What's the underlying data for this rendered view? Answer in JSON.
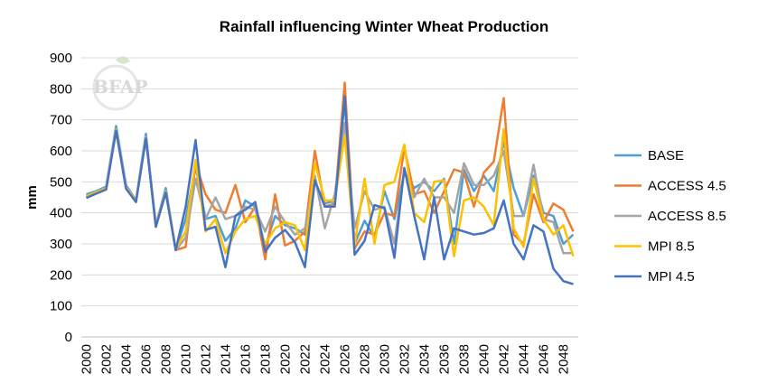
{
  "chart_data": {
    "type": "line",
    "title": "Rainfall influencing Winter Wheat Production",
    "ylabel": "mm",
    "xlabel": "",
    "ylim": [
      0,
      900
    ],
    "yticks": [
      0,
      100,
      200,
      300,
      400,
      500,
      600,
      700,
      800,
      900
    ],
    "xticks": [
      2000,
      2002,
      2004,
      2006,
      2008,
      2010,
      2012,
      2014,
      2016,
      2018,
      2020,
      2022,
      2024,
      2026,
      2028,
      2030,
      2032,
      2034,
      2036,
      2038,
      2040,
      2042,
      2044,
      2046,
      2048
    ],
    "x": [
      2000,
      2001,
      2002,
      2003,
      2004,
      2005,
      2006,
      2007,
      2008,
      2009,
      2010,
      2011,
      2012,
      2013,
      2014,
      2015,
      2016,
      2017,
      2018,
      2019,
      2020,
      2021,
      2022,
      2023,
      2024,
      2025,
      2026,
      2027,
      2028,
      2029,
      2030,
      2031,
      2032,
      2033,
      2034,
      2035,
      2036,
      2037,
      2038,
      2039,
      2040,
      2041,
      2042,
      2043,
      2044,
      2045,
      2046,
      2047,
      2048,
      2049
    ],
    "grid": true,
    "legend_position": "right",
    "watermark": "BFAP",
    "series": [
      {
        "name": "BASE",
        "color": "#4f9fd6",
        "values": [
          460,
          470,
          485,
          680,
          490,
          440,
          655,
          360,
          480,
          280,
          380,
          550,
          380,
          390,
          310,
          350,
          440,
          420,
          290,
          390,
          360,
          350,
          330,
          500,
          430,
          440,
          760,
          300,
          375,
          320,
          470,
          380,
          530,
          480,
          500,
          470,
          510,
          300,
          540,
          470,
          520,
          470,
          630,
          480,
          390,
          520,
          400,
          390,
          300,
          330
        ]
      },
      {
        "name": "ACCESS 4.5",
        "color": "#ed7d31",
        "values": [
          450,
          465,
          480,
          665,
          480,
          440,
          640,
          360,
          470,
          280,
          290,
          560,
          460,
          410,
          400,
          490,
          370,
          420,
          250,
          460,
          295,
          310,
          340,
          600,
          420,
          430,
          820,
          285,
          340,
          330,
          400,
          390,
          610,
          460,
          470,
          400,
          470,
          540,
          530,
          420,
          530,
          565,
          770,
          330,
          300,
          460,
          370,
          430,
          410,
          340
        ]
      },
      {
        "name": "ACCESS 8.5",
        "color": "#a5a5a5",
        "values": [
          455,
          468,
          482,
          670,
          485,
          438,
          645,
          355,
          470,
          280,
          320,
          510,
          380,
          450,
          380,
          390,
          420,
          410,
          340,
          420,
          370,
          330,
          350,
          520,
          350,
          460,
          690,
          350,
          470,
          410,
          420,
          300,
          540,
          450,
          510,
          450,
          450,
          400,
          560,
          490,
          490,
          520,
          600,
          390,
          390,
          555,
          380,
          370,
          270,
          270
        ]
      },
      {
        "name": "MPI 8.5",
        "color": "#ffc000",
        "values": [
          452,
          466,
          478,
          668,
          482,
          437,
          642,
          357,
          468,
          285,
          340,
          570,
          340,
          380,
          270,
          340,
          380,
          390,
          300,
          350,
          370,
          360,
          280,
          560,
          440,
          440,
          650,
          295,
          510,
          300,
          490,
          500,
          620,
          400,
          370,
          500,
          505,
          260,
          440,
          450,
          420,
          360,
          670,
          350,
          290,
          510,
          380,
          330,
          360,
          260
        ]
      },
      {
        "name": "MPI 4.5",
        "color": "#4472c4",
        "values": [
          448,
          462,
          475,
          665,
          478,
          435,
          640,
          355,
          465,
          280,
          420,
          635,
          345,
          355,
          225,
          390,
          410,
          435,
          275,
          320,
          345,
          305,
          225,
          505,
          420,
          420,
          775,
          265,
          310,
          425,
          415,
          255,
          545,
          390,
          250,
          450,
          250,
          350,
          340,
          330,
          335,
          350,
          440,
          300,
          250,
          360,
          340,
          220,
          180,
          170
        ]
      }
    ]
  }
}
